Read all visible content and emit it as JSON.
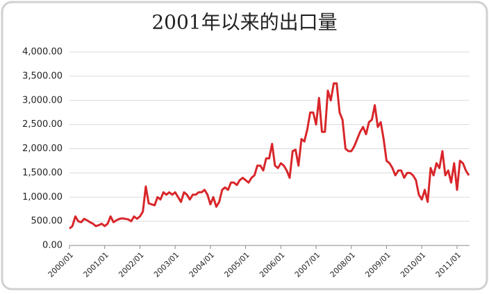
{
  "chart_data": {
    "type": "line",
    "title": "2001年以来的出口量",
    "categories": [
      "2000/01",
      null,
      null,
      null,
      null,
      null,
      null,
      null,
      null,
      null,
      null,
      null,
      "2001/01",
      null,
      null,
      null,
      null,
      null,
      null,
      null,
      null,
      null,
      null,
      null,
      "2002/01",
      null,
      null,
      null,
      null,
      null,
      null,
      null,
      null,
      null,
      null,
      null,
      "2003/01",
      null,
      null,
      null,
      null,
      null,
      null,
      null,
      null,
      null,
      null,
      null,
      "2004/01",
      null,
      null,
      null,
      null,
      null,
      null,
      null,
      null,
      null,
      null,
      null,
      "2005/01",
      null,
      null,
      null,
      null,
      null,
      null,
      null,
      null,
      null,
      null,
      null,
      "2006/01",
      null,
      null,
      null,
      null,
      null,
      null,
      null,
      null,
      null,
      null,
      null,
      "2007/01",
      null,
      null,
      null,
      null,
      null,
      null,
      null,
      null,
      null,
      null,
      null,
      "2008/01",
      null,
      null,
      null,
      null,
      null,
      null,
      null,
      null,
      null,
      null,
      null,
      "2009/01",
      null,
      null,
      null,
      null,
      null,
      null,
      null,
      null,
      null,
      null,
      null,
      "2010/01",
      null,
      null,
      null,
      null,
      null,
      null,
      null,
      null,
      null,
      null,
      null,
      "2011/01",
      null,
      null,
      null,
      null
    ],
    "series": [
      {
        "color": "#d8262a",
        "values": [
          350,
          400,
          600,
          500,
          480,
          550,
          520,
          480,
          450,
          400,
          420,
          450,
          400,
          450,
          600,
          480,
          520,
          550,
          560,
          550,
          540,
          500,
          600,
          550,
          600,
          700,
          1220,
          870,
          850,
          830,
          1000,
          950,
          1100,
          1050,
          1100,
          1050,
          1100,
          1000,
          900,
          1100,
          1050,
          950,
          1050,
          1050,
          1100,
          1100,
          1150,
          1050,
          850,
          1000,
          800,
          900,
          1150,
          1200,
          1150,
          1300,
          1300,
          1250,
          1350,
          1400,
          1350,
          1300,
          1400,
          1450,
          1650,
          1650,
          1550,
          1800,
          1800,
          2100,
          1650,
          1600,
          1700,
          1650,
          1550,
          1400,
          1950,
          1980,
          1650,
          2200,
          2150,
          2400,
          2750,
          2750,
          2500,
          3050,
          2350,
          2350,
          3200,
          3000,
          3350,
          3350,
          2750,
          2600,
          2000,
          1950,
          1950,
          2050,
          2200,
          2350,
          2450,
          2300,
          2550,
          2600,
          2900,
          2450,
          2550,
          2200,
          1750,
          1700,
          1600,
          1450,
          1550,
          1550,
          1400,
          1500,
          1500,
          1450,
          1350,
          1050,
          950,
          1150,
          900,
          1600,
          1450,
          1700,
          1600,
          1950,
          1450,
          1550,
          1300,
          1700,
          1150,
          1750,
          1700,
          1550,
          1450
        ]
      }
    ],
    "ylim": [
      0,
      4000
    ],
    "yticks": [
      {
        "value": 0,
        "label": "0.00"
      },
      {
        "value": 500,
        "label": "500.00"
      },
      {
        "value": 1000,
        "label": "1,000.00"
      },
      {
        "value": 1500,
        "label": "1,500.00"
      },
      {
        "value": 2000,
        "label": "2,000.00"
      },
      {
        "value": 2500,
        "label": "2,500.00"
      },
      {
        "value": 3000,
        "label": "3,000.00"
      },
      {
        "value": 3500,
        "label": "3,500.00"
      },
      {
        "value": 4000,
        "label": "4,000.00"
      }
    ],
    "grid": true
  }
}
